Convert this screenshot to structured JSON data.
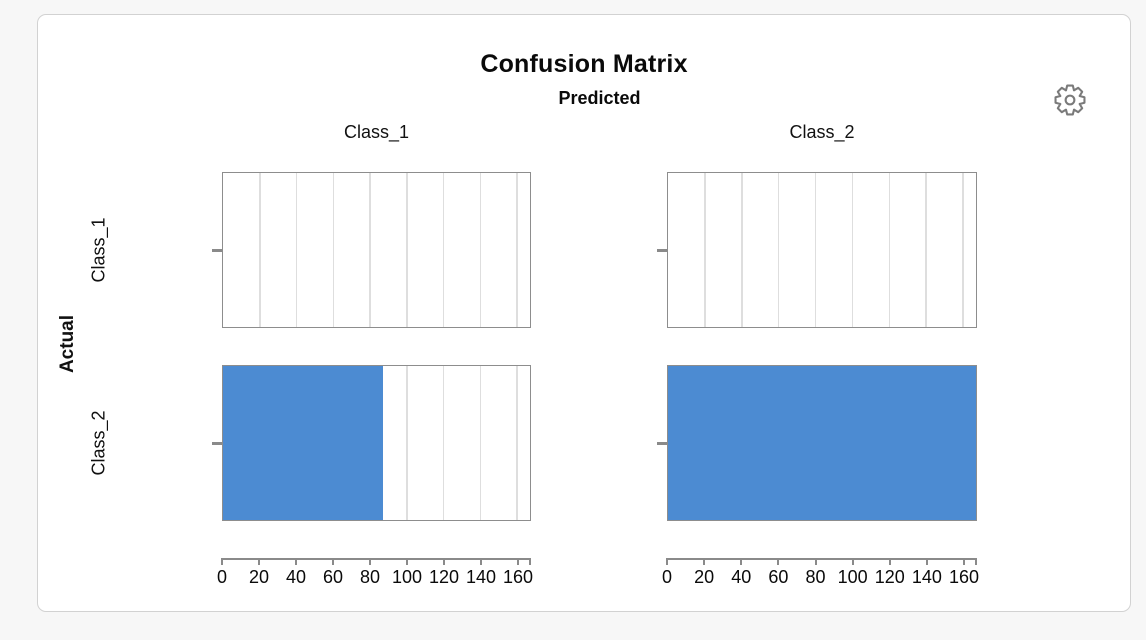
{
  "page": {
    "background_color": "#f7f7f7",
    "card_background": "#ffffff",
    "card_border_color": "#d2d2d2"
  },
  "toolbar": {
    "settings_icon": "gear-icon"
  },
  "chart_data": {
    "type": "bar",
    "title": "Confusion Matrix",
    "facet_x_title": "Predicted",
    "facet_y_title": "Actual",
    "predicted_classes": [
      "Class_1",
      "Class_2"
    ],
    "actual_classes": [
      "Class_1",
      "Class_2"
    ],
    "counts_by_actual_row": [
      [
        0,
        0
      ],
      [
        87,
        167
      ]
    ],
    "x_ticks": [
      0,
      20,
      40,
      60,
      80,
      100,
      120,
      140,
      160
    ],
    "xlim": [
      0,
      167
    ],
    "bar_color": "#4c8bd2",
    "grid": "vertical",
    "legend": "none",
    "panel_border_color": "#8d8d8d",
    "gridline_color": "#dedede",
    "axis_color": "#8a8a8a"
  }
}
